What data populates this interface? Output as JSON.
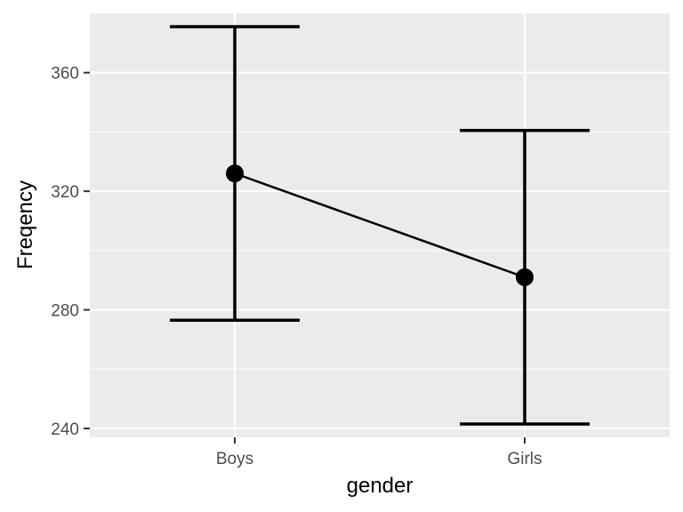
{
  "chart_data": {
    "type": "errorbar-line",
    "xlabel": "gender",
    "ylabel": "Freqency",
    "categories": [
      "Boys",
      "Girls"
    ],
    "series": [
      {
        "values": [
          326,
          291
        ],
        "lower": [
          276.5,
          241.5
        ],
        "upper": [
          375.5,
          340.5
        ]
      }
    ],
    "ylim": [
      237,
      380
    ],
    "yticks": [
      240,
      280,
      320,
      360
    ],
    "yminor": [
      260,
      300,
      340
    ],
    "grid": true,
    "legend": "none",
    "colors": {
      "panel": "#ebebeb",
      "grid": "#ffffff",
      "line": "#000000"
    }
  }
}
